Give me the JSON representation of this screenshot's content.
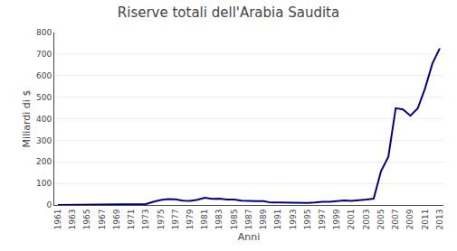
{
  "chart_data": {
    "type": "line",
    "title": "Riserve totali dell'Arabia Saudita",
    "xlabel": "Anni",
    "ylabel": "Miliardi di $",
    "x": [
      1961,
      1962,
      1963,
      1964,
      1965,
      1966,
      1967,
      1968,
      1969,
      1970,
      1971,
      1972,
      1973,
      1974,
      1975,
      1976,
      1977,
      1978,
      1979,
      1980,
      1981,
      1982,
      1983,
      1984,
      1985,
      1986,
      1987,
      1988,
      1989,
      1990,
      1991,
      1992,
      1993,
      1994,
      1995,
      1996,
      1997,
      1998,
      1999,
      2000,
      2001,
      2002,
      2003,
      2004,
      2005,
      2006,
      2007,
      2008,
      2009,
      2010,
      2011,
      2012,
      2013
    ],
    "values": [
      0.5,
      0.6,
      0.6,
      0.7,
      0.8,
      0.9,
      1.0,
      1.1,
      1.2,
      1.4,
      2.5,
      3.2,
      4.5,
      14.5,
      23.0,
      27.0,
      26.5,
      19.5,
      19.0,
      24.0,
      33.0,
      28.0,
      29.0,
      25.0,
      25.0,
      20.0,
      18.0,
      18.0,
      18.0,
      11.0,
      12.0,
      11.0,
      9.0,
      9.5,
      9.0,
      11.5,
      15.0,
      14.5,
      17.0,
      21.0,
      19.0,
      21.0,
      25.0,
      29.0,
      157.0,
      223.0,
      449.0,
      443.0,
      414.0,
      448.0,
      541.0,
      656.0,
      726.0
    ],
    "color": "#00008B",
    "xlim": [
      1960.5,
      2013.5
    ],
    "xticks": [
      1961,
      1963,
      1965,
      1967,
      1969,
      1971,
      1973,
      1975,
      1977,
      1979,
      1981,
      1983,
      1985,
      1987,
      1989,
      1991,
      1993,
      1995,
      1997,
      1999,
      2001,
      2003,
      2005,
      2007,
      2009,
      2011,
      2013
    ],
    "ylim": [
      0,
      800
    ],
    "yticks": [
      0,
      100,
      200,
      300,
      400,
      500,
      600,
      700,
      800
    ],
    "grid": "y"
  }
}
